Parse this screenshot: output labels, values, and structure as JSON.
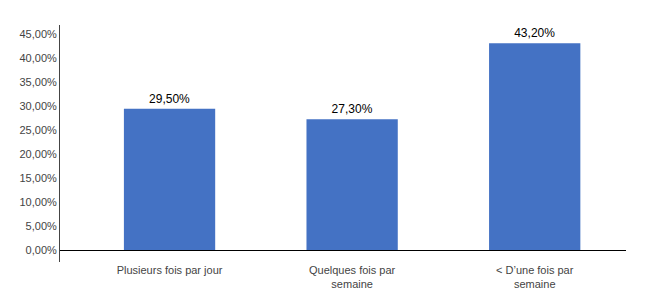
{
  "chart_data": {
    "type": "bar",
    "categories": [
      "Plusieurs fois par jour",
      "Quelques fois par\nsemaine",
      "< D’une fois par\nsemaine"
    ],
    "values": [
      29.5,
      27.3,
      43.2
    ],
    "value_labels": [
      "29,50%",
      "27,30%",
      "43,20%"
    ],
    "data_labels": true,
    "color": "#4472C4",
    "ylim": [
      -2.5,
      47
    ],
    "yticks": [
      {
        "value": 0.0,
        "label": "0,00%"
      },
      {
        "value": 5.0,
        "label": "5,00%"
      },
      {
        "value": 10.0,
        "label": "10,00%"
      },
      {
        "value": 15.0,
        "label": "15,00%"
      },
      {
        "value": 20.0,
        "label": "20,00%"
      },
      {
        "value": 25.0,
        "label": "25,00%"
      },
      {
        "value": 30.0,
        "label": "30,00%"
      },
      {
        "value": 35.0,
        "label": "35,00%"
      },
      {
        "value": 40.0,
        "label": "40,00%"
      },
      {
        "value": 45.0,
        "label": "45,00%"
      }
    ],
    "grid": false
  }
}
